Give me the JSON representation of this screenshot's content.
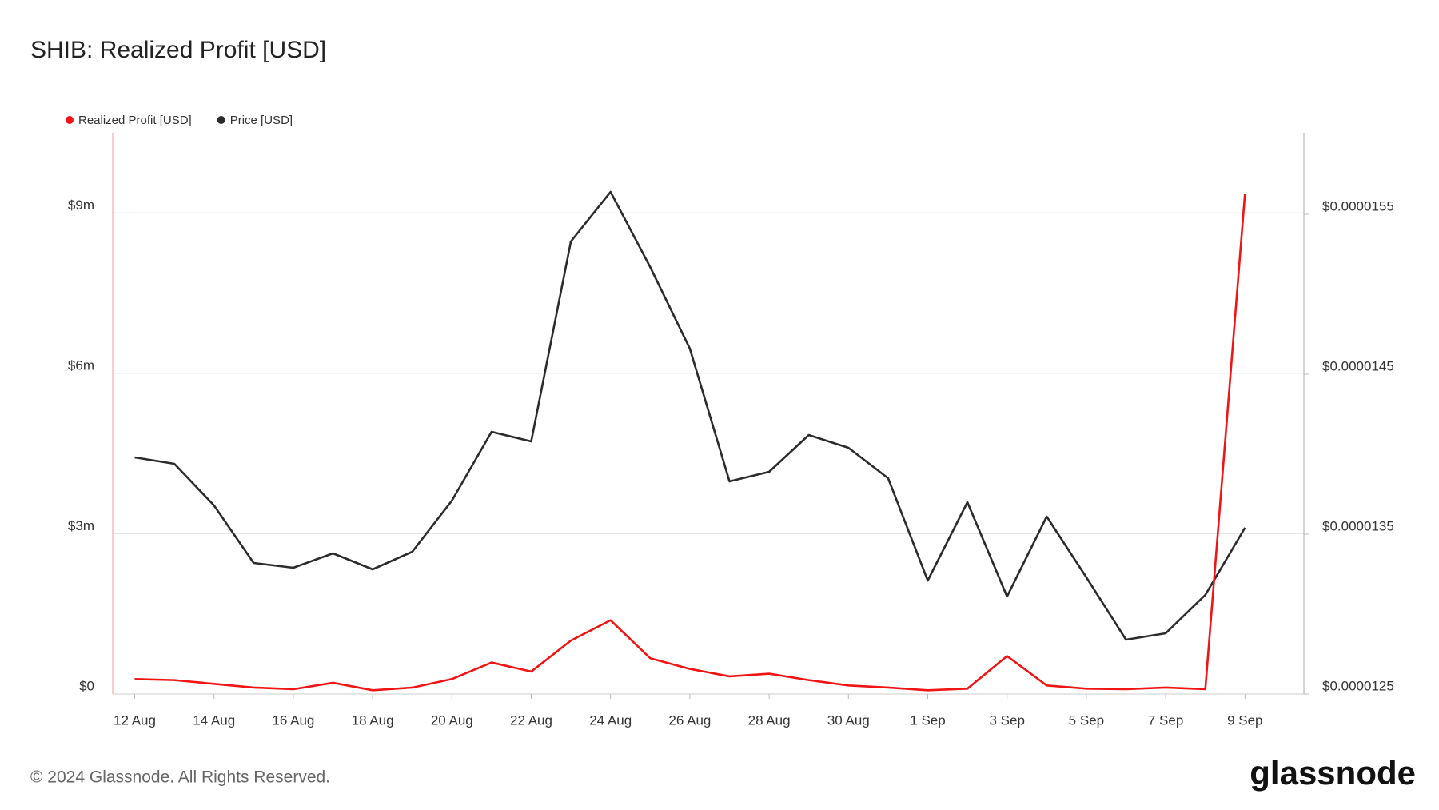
{
  "chart_data": {
    "type": "line",
    "title": "SHIB: Realized Profit [USD]",
    "categories": [
      "12 Aug",
      null,
      "14 Aug",
      null,
      "16 Aug",
      null,
      "18 Aug",
      null,
      "20 Aug",
      null,
      "22 Aug",
      null,
      "24 Aug",
      null,
      "26 Aug",
      null,
      "28 Aug",
      null,
      "30 Aug",
      null,
      "1 Sep",
      null,
      "3 Sep",
      null,
      "5 Sep",
      null,
      "7 Sep",
      null,
      "9 Sep"
    ],
    "series": [
      {
        "name": "Realized Profit [USD]",
        "color": "#f01414",
        "values": [
          280000,
          260000,
          190000,
          120000,
          90000,
          210000,
          70000,
          120000,
          280000,
          590000,
          420000,
          1000000,
          1380000,
          670000,
          470000,
          330000,
          380000,
          260000,
          160000,
          120000,
          70000,
          100000,
          710000,
          160000,
          100000,
          90000,
          120000,
          90000,
          9360000
        ]
      },
      {
        "name": "Price [USD]",
        "color": "#2b2b2b",
        "axis": "y2",
        "values": [
          1.398e-05,
          1.394e-05,
          1.368e-05,
          1.332e-05,
          1.329e-05,
          1.338e-05,
          1.328e-05,
          1.339e-05,
          1.371e-05,
          1.414e-05,
          1.408e-05,
          1.533e-05,
          1.564e-05,
          1.517e-05,
          1.466e-05,
          1.383e-05,
          1.389e-05,
          1.412e-05,
          1.404e-05,
          1.385e-05,
          1.321e-05,
          1.37e-05,
          1.311e-05,
          1.361e-05,
          1.323e-05,
          1.284e-05,
          1.288e-05,
          1.312e-05,
          1.354e-05
        ]
      }
    ],
    "ylim": [
      0,
      10500000
    ],
    "yticks": [
      {
        "value": 0,
        "label": "$0"
      },
      {
        "value": 3000000,
        "label": "$3m"
      },
      {
        "value": 6000000,
        "label": "$6m"
      },
      {
        "value": 9000000,
        "label": "$9m"
      }
    ],
    "y2lim": [
      1.25e-05,
      1.601e-05
    ],
    "y2ticks": [
      {
        "value": 1.25e-05,
        "label": "$0.0000125"
      },
      {
        "value": 1.35e-05,
        "label": "$0.0000135"
      },
      {
        "value": 1.45e-05,
        "label": "$0.0000145"
      },
      {
        "value": 1.55e-05,
        "label": "$0.0000155"
      }
    ],
    "grid": true,
    "legend": "top-left",
    "footer": "© 2024 Glassnode. All Rights Reserved.",
    "brand": "glassnode"
  }
}
